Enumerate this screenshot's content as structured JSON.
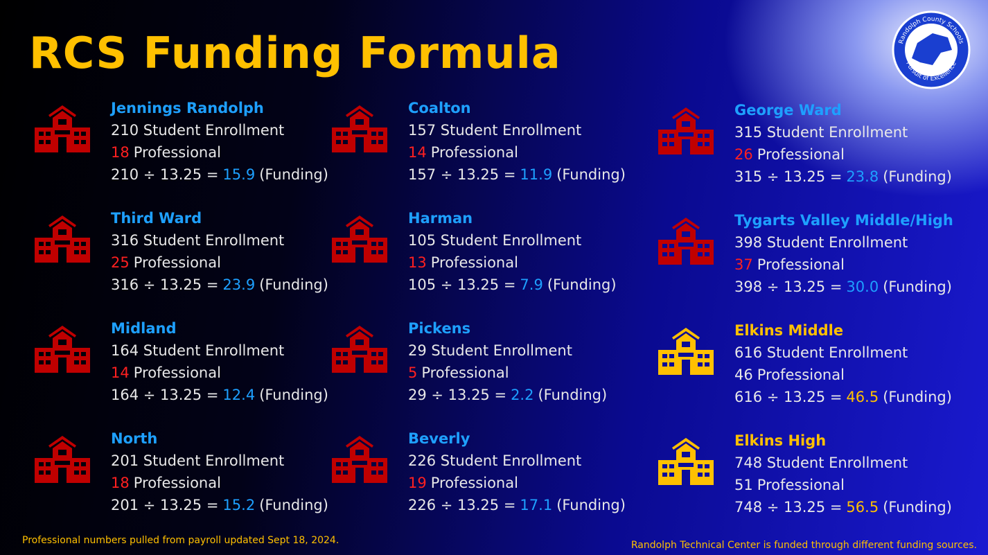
{
  "header": {
    "title": "RCS Funding Formula",
    "logo_top": "Randolph County Schools",
    "logo_bottom": "Pursuit of Excellence"
  },
  "schools": [
    {
      "name": "Jennings Randolph",
      "enrollment": "210 Student Enrollment",
      "professional_count": "18",
      "professional_label": "Professional",
      "formula": "210 ÷ 13.25 =",
      "funding": "15.9",
      "funding_label": "(Funding)",
      "color": "#c00000"
    },
    {
      "name": "Third Ward",
      "enrollment": "316 Student Enrollment",
      "professional_count": "25",
      "professional_label": "Professional",
      "formula": "316 ÷ 13.25 =",
      "funding": "23.9",
      "funding_label": "(Funding)",
      "color": "#c00000"
    },
    {
      "name": "Midland",
      "enrollment": "164 Student Enrollment",
      "professional_count": "14",
      "professional_label": "Professional",
      "formula": "164 ÷ 13.25 =",
      "funding": "12.4",
      "funding_label": "(Funding)",
      "color": "#c00000"
    },
    {
      "name": "North",
      "enrollment": "201 Student Enrollment",
      "professional_count": "18",
      "professional_label": "Professional",
      "formula": "201 ÷ 13.25 =",
      "funding": "15.2",
      "funding_label": "(Funding)",
      "color": "#c00000"
    },
    {
      "name": "Coalton",
      "enrollment": "157 Student Enrollment",
      "professional_count": "14",
      "professional_label": "Professional",
      "formula": "157 ÷ 13.25 =",
      "funding": "11.9",
      "funding_label": "(Funding)",
      "color": "#c00000"
    },
    {
      "name": "Harman",
      "enrollment": "105 Student Enrollment",
      "professional_count": "13",
      "professional_label": "Professional",
      "formula": "105 ÷ 13.25 =",
      "funding": "7.9",
      "funding_label": "(Funding)",
      "color": "#c00000"
    },
    {
      "name": "Pickens",
      "enrollment": "29 Student Enrollment",
      "professional_count": "5",
      "professional_label": "Professional",
      "formula": "29 ÷ 13.25 =",
      "funding": "2.2",
      "funding_label": "(Funding)",
      "color": "#c00000"
    },
    {
      "name": "Beverly",
      "enrollment": "226 Student Enrollment",
      "professional_count": "19",
      "professional_label": "Professional",
      "formula": "226 ÷ 13.25 =",
      "funding": "17.1",
      "funding_label": "(Funding)",
      "color": "#c00000"
    },
    {
      "name": "George Ward",
      "enrollment": "315 Student Enrollment",
      "professional_count": "26",
      "professional_label": "Professional",
      "formula": "315 ÷ 13.25 =",
      "funding": "23.8",
      "funding_label": "(Funding)",
      "color": "#c00000"
    },
    {
      "name": "Tygarts Valley Middle/High",
      "enrollment": "398 Student Enrollment",
      "professional_count": "37",
      "professional_label": "Professional",
      "formula": "398 ÷ 13.25 =",
      "funding": "30.0",
      "funding_label": "(Funding)",
      "color": "#c00000"
    },
    {
      "name": "Elkins Middle",
      "enrollment": "616 Student Enrollment",
      "professional_count": "46",
      "professional_label": "Professional",
      "formula": "616 ÷ 13.25 =",
      "funding": "46.5",
      "funding_label": "(Funding)",
      "color": "#ffc000"
    },
    {
      "name": "Elkins High",
      "enrollment": "748 Student Enrollment",
      "professional_count": "51",
      "professional_label": "Professional",
      "formula": "748 ÷ 13.25 =",
      "funding": "56.5",
      "funding_label": "(Funding)",
      "color": "#ffc000"
    }
  ],
  "footer": {
    "left": "Professional numbers pulled from payroll updated Sept 18, 2024.",
    "right": "Randolph Technical Center is funded through different funding sources."
  }
}
